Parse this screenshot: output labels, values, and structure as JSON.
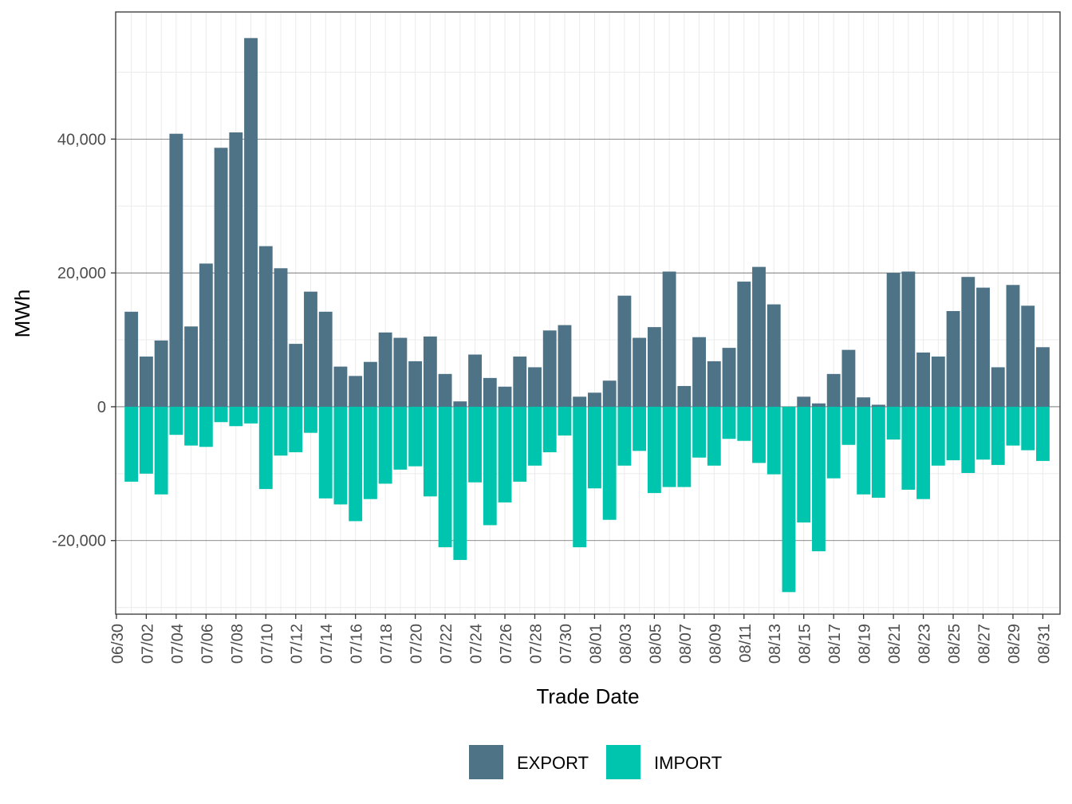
{
  "chart_data": {
    "type": "bar",
    "stacking": "diverging",
    "xlabel": "Trade Date",
    "ylabel": "MWh",
    "ylim": [
      -31000,
      59000
    ],
    "yticks": [
      -20000,
      0,
      20000,
      40000
    ],
    "ytick_labels": [
      "-20,000",
      "0",
      "20,000",
      "40,000"
    ],
    "grid": true,
    "legend_position": "bottom",
    "categories": [
      "07/01",
      "07/02",
      "07/03",
      "07/04",
      "07/05",
      "07/06",
      "07/07",
      "07/08",
      "07/09",
      "07/10",
      "07/11",
      "07/12",
      "07/13",
      "07/14",
      "07/15",
      "07/16",
      "07/17",
      "07/18",
      "07/19",
      "07/20",
      "07/21",
      "07/22",
      "07/23",
      "07/24",
      "07/25",
      "07/26",
      "07/27",
      "07/28",
      "07/29",
      "07/30",
      "07/31",
      "08/01",
      "08/02",
      "08/03",
      "08/04",
      "08/05",
      "08/06",
      "08/07",
      "08/08",
      "08/09",
      "08/10",
      "08/11",
      "08/12",
      "08/13",
      "08/14",
      "08/15",
      "08/16",
      "08/17",
      "08/18",
      "08/19",
      "08/20",
      "08/21",
      "08/22",
      "08/23",
      "08/24",
      "08/25",
      "08/26",
      "08/27",
      "08/28",
      "08/29",
      "08/30",
      "08/31"
    ],
    "xtick_labels": [
      "06/30",
      "07/02",
      "07/04",
      "07/06",
      "07/08",
      "07/10",
      "07/12",
      "07/14",
      "07/16",
      "07/18",
      "07/20",
      "07/22",
      "07/24",
      "07/26",
      "07/28",
      "07/30",
      "08/01",
      "08/03",
      "08/05",
      "08/07",
      "08/09",
      "08/11",
      "08/13",
      "08/15",
      "08/17",
      "08/19",
      "08/21",
      "08/23",
      "08/25",
      "08/27",
      "08/29",
      "08/31"
    ],
    "series": [
      {
        "name": "EXPORT",
        "color": "#4e7387",
        "values": [
          14200,
          7500,
          9900,
          40800,
          12000,
          21400,
          38700,
          41000,
          55100,
          24000,
          20700,
          9400,
          17200,
          14200,
          6000,
          4600,
          6700,
          11100,
          10300,
          6800,
          10500,
          4900,
          800,
          7800,
          4300,
          3000,
          7500,
          5900,
          11400,
          12200,
          1500,
          2100,
          3900,
          16600,
          10300,
          11900,
          20200,
          3100,
          10400,
          6800,
          8800,
          18700,
          20900,
          15300,
          0,
          1500,
          500,
          4900,
          8500,
          1400,
          300,
          20000,
          20200,
          8100,
          7500,
          14300,
          19400,
          17800,
          5900,
          18200,
          15100,
          8900
        ]
      },
      {
        "name": "IMPORT",
        "color": "#00c5ae",
        "values": [
          -11200,
          -10000,
          -13100,
          -4200,
          -5800,
          -6000,
          -2300,
          -2900,
          -2500,
          -12300,
          -7300,
          -6800,
          -3900,
          -13700,
          -14600,
          -17100,
          -13800,
          -11500,
          -9400,
          -8900,
          -13400,
          -21000,
          -22900,
          -11300,
          -17700,
          -14300,
          -11200,
          -8800,
          -6800,
          -4300,
          -21000,
          -12200,
          -16900,
          -8800,
          -6600,
          -12900,
          -12000,
          -12000,
          -7600,
          -8800,
          -4800,
          -5100,
          -8400,
          -10100,
          -27700,
          -17300,
          -21600,
          -10700,
          -5700,
          -13100,
          -13600,
          -4900,
          -12400,
          -13800,
          -8800,
          -8000,
          -9900,
          -7900,
          -8700,
          -5800,
          -6500,
          -8100
        ]
      }
    ]
  }
}
